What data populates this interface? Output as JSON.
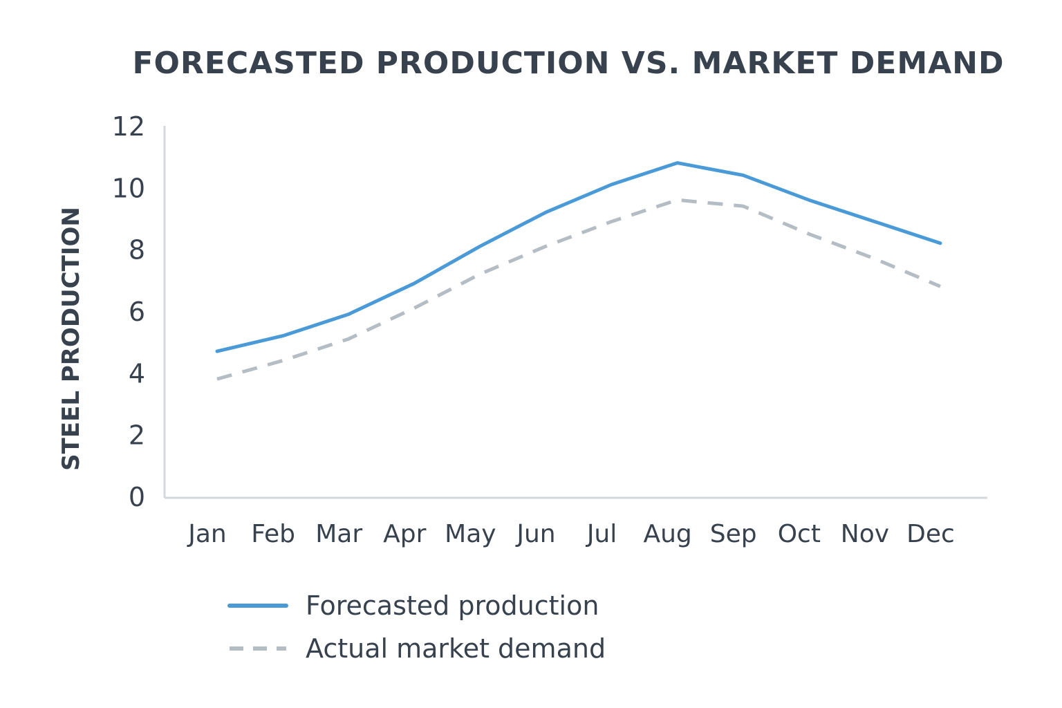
{
  "chart_data": {
    "type": "line",
    "title": "FORECASTED PRODUCTION VS. MARKET DEMAND",
    "xlabel": "",
    "ylabel": "STEEL PRODUCTION",
    "ylim": [
      0,
      12
    ],
    "yticks": [
      "0",
      "2",
      "4",
      "6",
      "8",
      "10",
      "12"
    ],
    "categories": [
      "Jan",
      "Feb",
      "Mar",
      "Apr",
      "May",
      "Jun",
      "Jul",
      "Aug",
      "Sep",
      "Oct",
      "Nov",
      "Dec"
    ],
    "grid": false,
    "legend_position": "bottom",
    "series": [
      {
        "name": "Forecasted production",
        "values": [
          4.7,
          5.2,
          5.9,
          6.9,
          8.1,
          9.2,
          10.1,
          10.8,
          10.4,
          9.6,
          8.9,
          8.2
        ],
        "color": "#4a9ad8",
        "style": "solid"
      },
      {
        "name": "Actual market demand",
        "values": [
          3.8,
          4.4,
          5.1,
          6.1,
          7.2,
          8.1,
          8.9,
          9.6,
          9.4,
          8.5,
          7.7,
          6.8
        ],
        "color": "#b4bcc4",
        "style": "dashed"
      }
    ]
  }
}
